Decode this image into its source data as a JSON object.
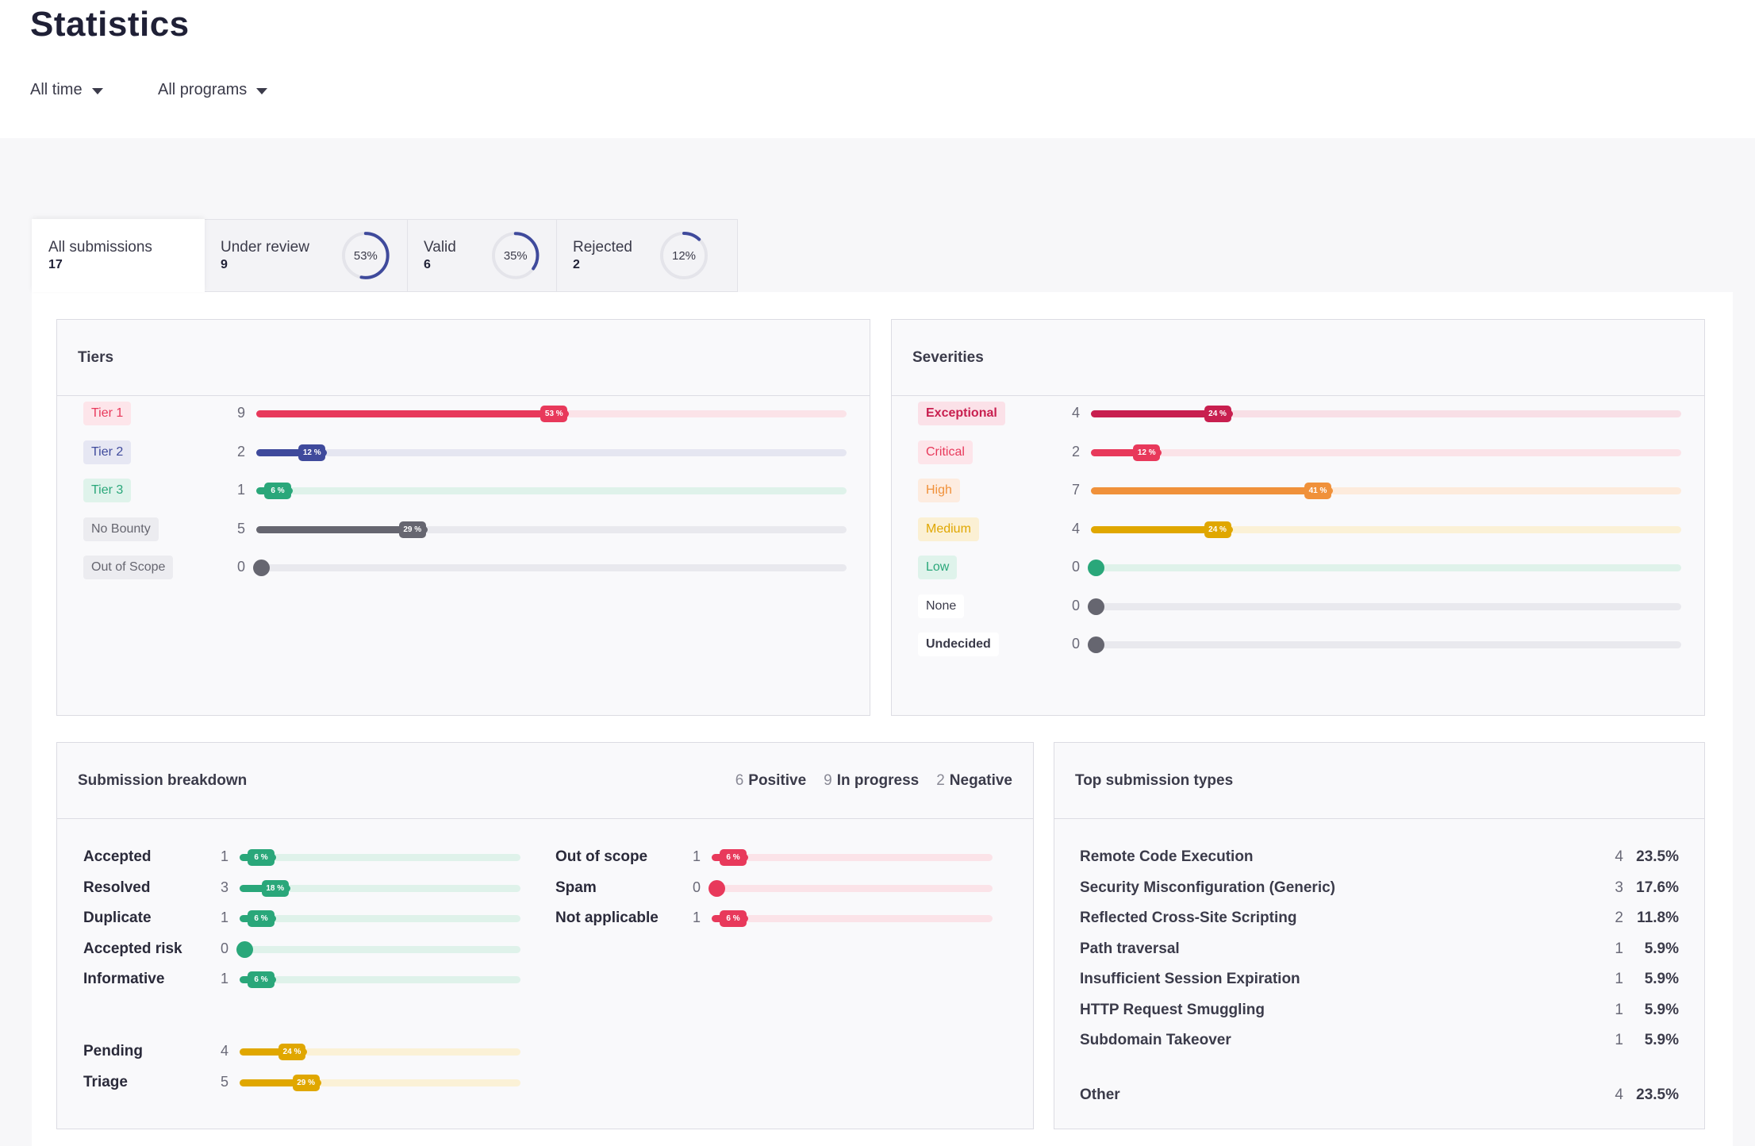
{
  "page": {
    "title": "Statistics"
  },
  "filters": {
    "time": "All time",
    "programs": "All programs"
  },
  "tabs": [
    {
      "label": "All submissions",
      "count": "17"
    },
    {
      "label": "Under review",
      "count": "9",
      "percent_label": "53%",
      "percent": 53
    },
    {
      "label": "Valid",
      "count": "6",
      "percent_label": "35%",
      "percent": 35
    },
    {
      "label": "Rejected",
      "count": "2",
      "percent_label": "12%",
      "percent": 12
    }
  ],
  "colors": {
    "ring": "#3f4a9c",
    "ring_track": "#e4e4ea",
    "red": "#e8395b",
    "red_track": "#fbe3e8",
    "blue": "#3f4a9c",
    "blue_track": "#e5e6f1",
    "green": "#2aa77a",
    "green_track": "#dff2ea",
    "gray": "#666670",
    "gray_track": "#e9e9ee",
    "crimson": "#c81f4f",
    "orange": "#f0913a",
    "orange_track": "#fdebdc",
    "yellow": "#e0a700",
    "yellow_track": "#fbf1d6"
  },
  "tiers": {
    "title": "Tiers",
    "rows": [
      {
        "label": "Tier 1",
        "count": "9",
        "percent": 53,
        "pill": "53 %",
        "text_color": "#e8395b",
        "badge_bg": "#fde5ea",
        "fill": "#e8395b",
        "track": "#fbe3e8"
      },
      {
        "label": "Tier 2",
        "count": "2",
        "percent": 12,
        "pill": "12 %",
        "text_color": "#3f4a9c",
        "badge_bg": "#e6e7f3",
        "fill": "#3f4a9c",
        "track": "#e5e6f1"
      },
      {
        "label": "Tier 3",
        "count": "1",
        "percent": 6,
        "pill": "6 %",
        "text_color": "#2aa77a",
        "badge_bg": "#dff3eb",
        "fill": "#2aa77a",
        "track": "#dff2ea"
      },
      {
        "label": "No Bounty",
        "count": "5",
        "percent": 29,
        "pill": "29 %",
        "text_color": "#666670",
        "badge_bg": "#ececf0",
        "fill": "#666670",
        "track": "#e9e9ee"
      },
      {
        "label": "Out of Scope",
        "count": "0",
        "percent": 0,
        "pill": "",
        "text_color": "#666670",
        "badge_bg": "#ececf0",
        "fill": "#666670",
        "track": "#e9e9ee"
      }
    ]
  },
  "severities": {
    "title": "Severities",
    "rows": [
      {
        "label": "Exceptional",
        "count": "4",
        "percent": 24,
        "pill": "24 %",
        "text_color": "#c81f4f",
        "badge_bg": "#fbe1e8",
        "fill": "#c81f4f",
        "track": "#f8dfe6",
        "bold": true
      },
      {
        "label": "Critical",
        "count": "2",
        "percent": 12,
        "pill": "12 %",
        "text_color": "#e8395b",
        "badge_bg": "#fde5ea",
        "fill": "#e8395b",
        "track": "#fbe3e8"
      },
      {
        "label": "High",
        "count": "7",
        "percent": 41,
        "pill": "41 %",
        "text_color": "#f0913a",
        "badge_bg": "#fdece0",
        "fill": "#f0913a",
        "track": "#fdebdc"
      },
      {
        "label": "Medium",
        "count": "4",
        "percent": 24,
        "pill": "24 %",
        "text_color": "#e0a700",
        "badge_bg": "#fbf0d4",
        "fill": "#e0a700",
        "track": "#fbf1d6"
      },
      {
        "label": "Low",
        "count": "0",
        "percent": 0,
        "pill": "",
        "text_color": "#2aa77a",
        "badge_bg": "#dff3eb",
        "fill": "#2aa77a",
        "track": "#dff2ea"
      },
      {
        "label": "None",
        "count": "0",
        "percent": 0,
        "pill": "",
        "text_color": "#3b3b4a",
        "badge_bg": "#ffffff",
        "fill": "#666670",
        "track": "#e9e9ee"
      },
      {
        "label": "Undecided",
        "count": "0",
        "percent": 0,
        "pill": "",
        "text_color": "#3b3b4a",
        "badge_bg": "#ffffff",
        "fill": "#666670",
        "track": "#e9e9ee",
        "bold": true
      }
    ]
  },
  "breakdown": {
    "title": "Submission breakdown",
    "legend": [
      {
        "num": "6",
        "label": "Positive"
      },
      {
        "num": "9",
        "label": "In progress"
      },
      {
        "num": "2",
        "label": "Negative"
      }
    ],
    "positive": [
      {
        "label": "Accepted",
        "count": "1",
        "percent": 6,
        "pill": "6 %"
      },
      {
        "label": "Resolved",
        "count": "3",
        "percent": 18,
        "pill": "18 %"
      },
      {
        "label": "Duplicate",
        "count": "1",
        "percent": 6,
        "pill": "6 %"
      },
      {
        "label": "Accepted risk",
        "count": "0",
        "percent": 0,
        "pill": ""
      },
      {
        "label": "Informative",
        "count": "1",
        "percent": 6,
        "pill": "6 %"
      }
    ],
    "in_progress": [
      {
        "label": "Pending",
        "count": "4",
        "percent": 24,
        "pill": "24 %"
      },
      {
        "label": "Triage",
        "count": "5",
        "percent": 29,
        "pill": "29 %"
      }
    ],
    "negative": [
      {
        "label": "Out of scope",
        "count": "1",
        "percent": 6,
        "pill": "6 %"
      },
      {
        "label": "Spam",
        "count": "0",
        "percent": 0,
        "pill": ""
      },
      {
        "label": "Not applicable",
        "count": "1",
        "percent": 6,
        "pill": "6 %"
      }
    ]
  },
  "top_types": {
    "title": "Top submission types",
    "rows": [
      {
        "name": "Remote Code Execution",
        "count": "4",
        "pct": "23.5%"
      },
      {
        "name": "Security Misconfiguration (Generic)",
        "count": "3",
        "pct": "17.6%"
      },
      {
        "name": "Reflected Cross-Site Scripting",
        "count": "2",
        "pct": "11.8%"
      },
      {
        "name": "Path traversal",
        "count": "1",
        "pct": "5.9%"
      },
      {
        "name": "Insufficient Session Expiration",
        "count": "1",
        "pct": "5.9%"
      },
      {
        "name": "HTTP Request Smuggling",
        "count": "1",
        "pct": "5.9%"
      },
      {
        "name": "Subdomain Takeover",
        "count": "1",
        "pct": "5.9%"
      }
    ],
    "other": {
      "name": "Other",
      "count": "4",
      "pct": "23.5%"
    }
  }
}
